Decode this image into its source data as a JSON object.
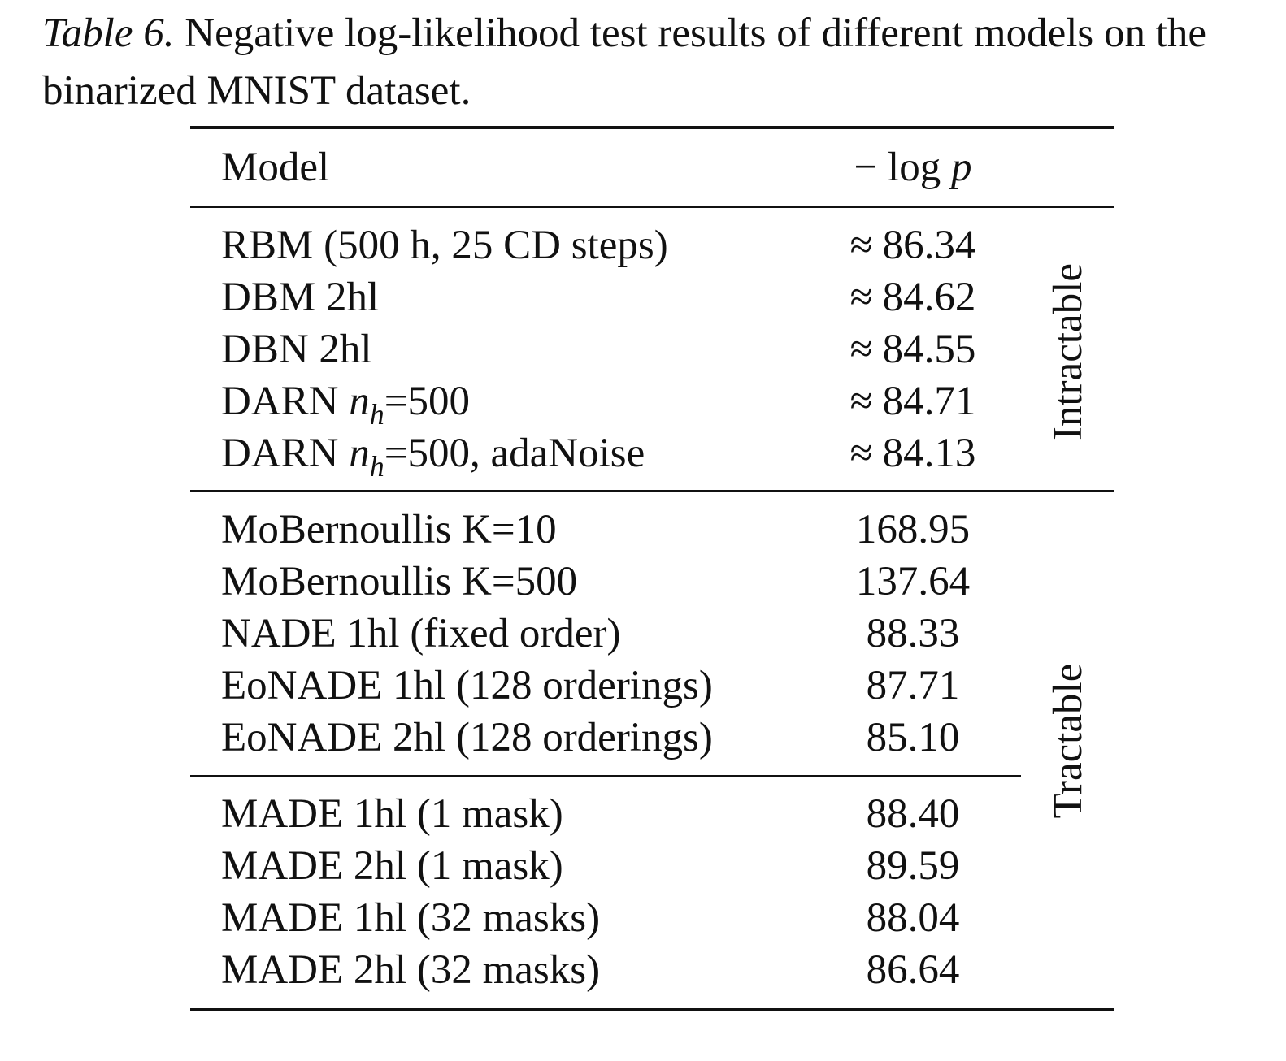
{
  "caption": {
    "label": "Table 6.",
    "text": "Negative log-likelihood test results of different models on the binarized MNIST dataset."
  },
  "table": {
    "header": {
      "model": "Model",
      "value_prefix": "− log ",
      "value_var": "p"
    },
    "groups": [
      {
        "label": "Intractable",
        "rows": [
          {
            "name": "RBM (500 h, 25 CD steps)",
            "approx": "≈",
            "value": "86.34"
          },
          {
            "name": "DBM 2hl",
            "approx": "≈",
            "value": "84.62"
          },
          {
            "name": "DBN 2hl",
            "approx": "≈",
            "value": "84.55"
          },
          {
            "name_prefix": "DARN ",
            "name_var": "n",
            "name_sub": "h",
            "name_suffix": "=500",
            "approx": "≈",
            "value": "84.71"
          },
          {
            "name_prefix": "DARN ",
            "name_var": "n",
            "name_sub": "h",
            "name_suffix": "=500, adaNoise",
            "approx": "≈",
            "value": "84.13"
          }
        ]
      },
      {
        "label": "Tractable",
        "rows": [
          {
            "name": "MoBernoullis K=10",
            "value": "168.95"
          },
          {
            "name": "MoBernoullis K=500",
            "value": "137.64"
          },
          {
            "name": "NADE 1hl (fixed order)",
            "value": "88.33"
          },
          {
            "name": "EoNADE 1hl (128 orderings)",
            "value": "87.71"
          },
          {
            "name": "EoNADE 2hl (128 orderings)",
            "value": "85.10"
          },
          {
            "name": "MADE 1hl (1 mask)",
            "value": "88.40"
          },
          {
            "name": "MADE 2hl (1 mask)",
            "value": "89.59"
          },
          {
            "name": "MADE 1hl (32 masks)",
            "value": "88.04"
          },
          {
            "name": "MADE 2hl (32 masks)",
            "value": "86.64"
          }
        ]
      }
    ]
  }
}
